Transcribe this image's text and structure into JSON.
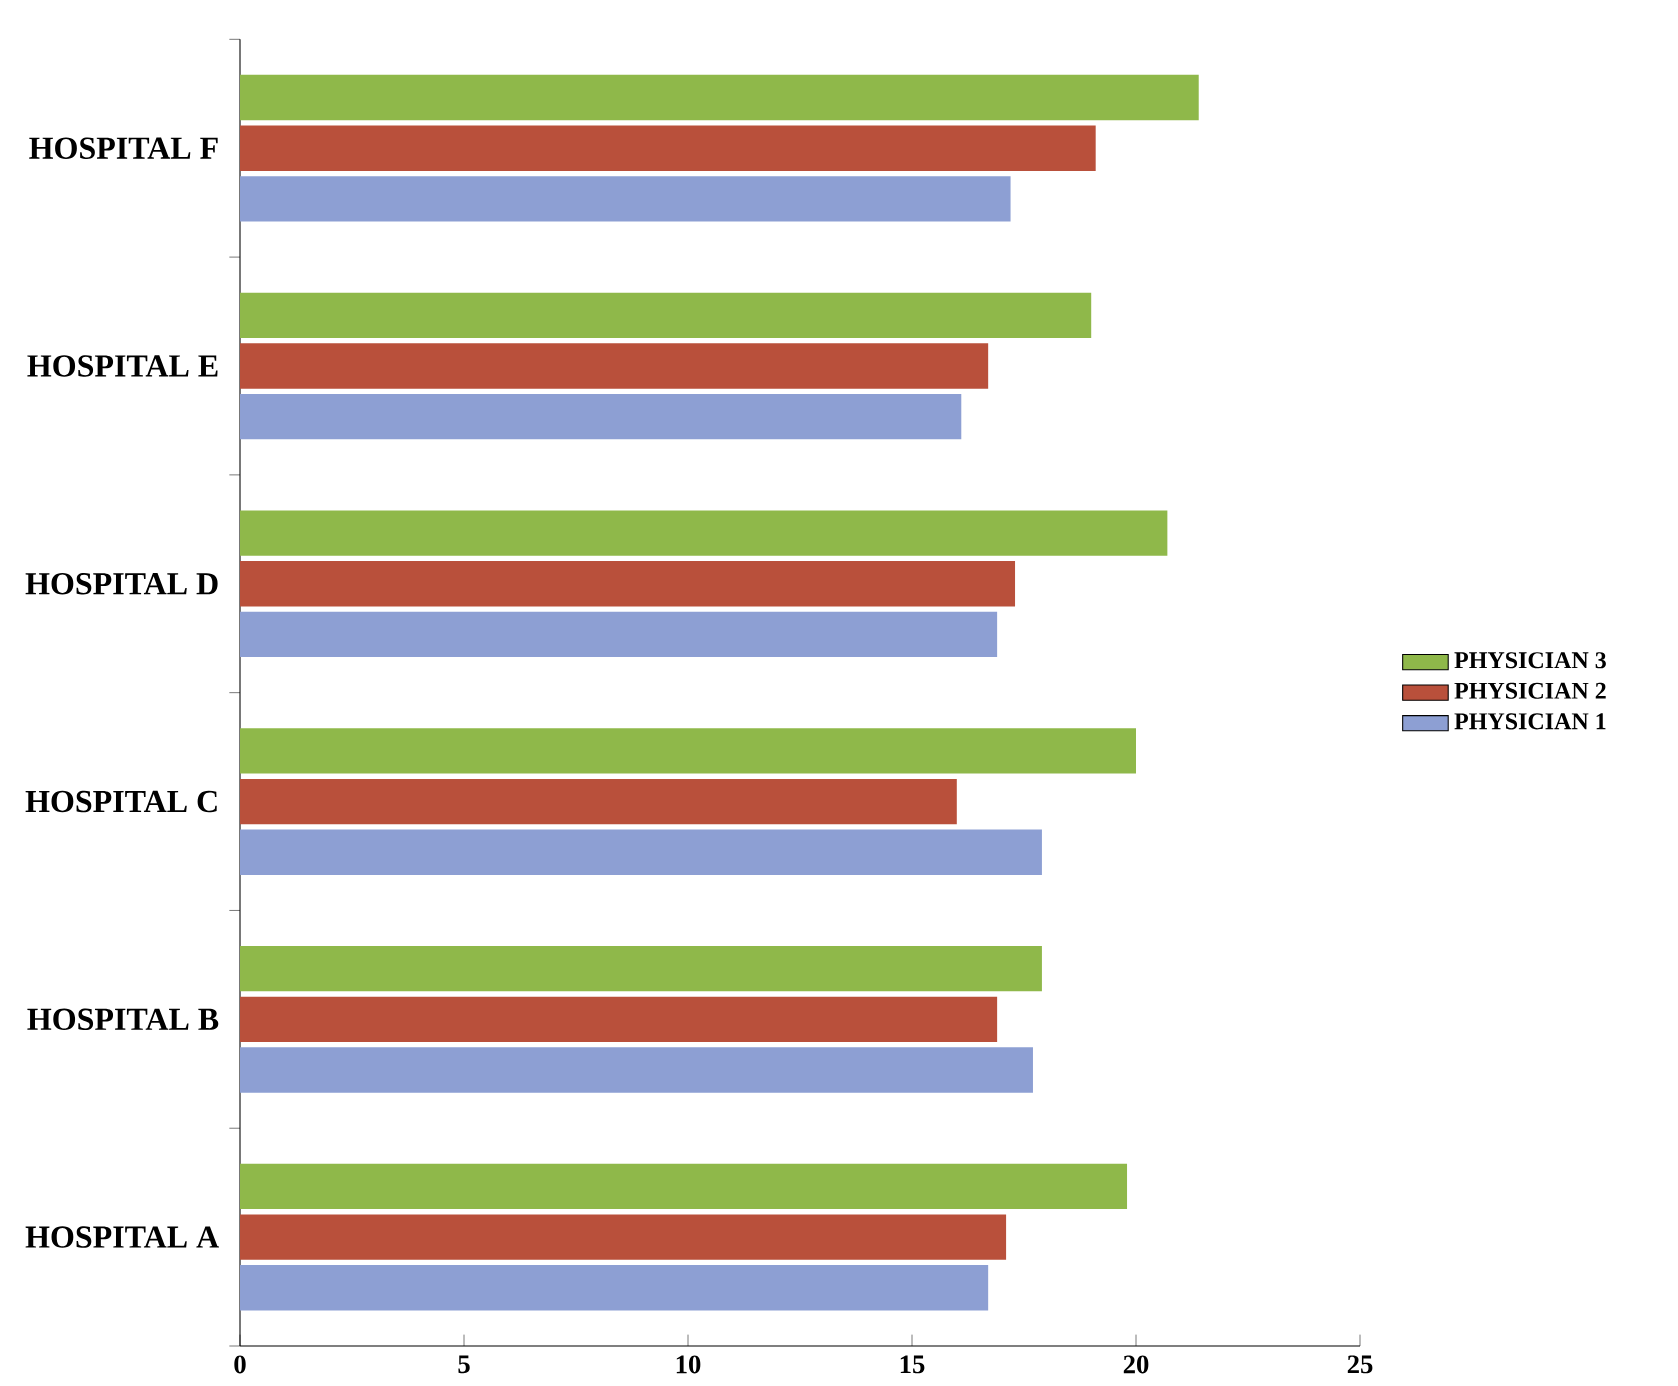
{
  "chart_data": {
    "type": "bar",
    "orientation": "horizontal",
    "categories": [
      "HOSPITAL F",
      "HOSPITAL E",
      "HOSPITAL D",
      "HOSPITAL C",
      "HOSPITAL B",
      "HOSPITAL A"
    ],
    "series": [
      {
        "name": "PHYSICIAN 1",
        "color": "#8d9fd3",
        "values": [
          17.2,
          16.1,
          16.9,
          17.9,
          17.7,
          16.7
        ]
      },
      {
        "name": "PHYSICIAN 2",
        "color": "#b9503b",
        "values": [
          19.1,
          16.7,
          17.3,
          16,
          16.9,
          17.1
        ]
      },
      {
        "name": "PHYSICIAN 3",
        "color": "#8fb84a",
        "values": [
          21.4,
          19,
          20.7,
          20,
          17.9,
          19.8
        ]
      }
    ],
    "xlim": [
      0,
      25
    ],
    "xticks": [
      0,
      5,
      10,
      15,
      20,
      25
    ],
    "grid": false,
    "legend": "right"
  }
}
